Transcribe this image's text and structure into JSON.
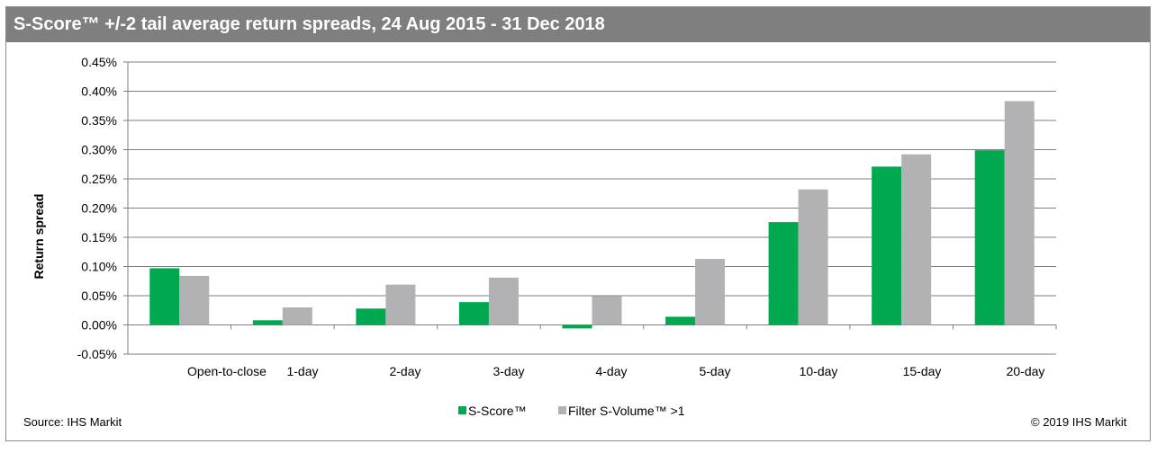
{
  "title": "S-Score™ +/-2 tail average return spreads, 24 Aug 2015 - 31 Dec 2018",
  "footer": {
    "source": "Source: IHS Markit",
    "copyright": "© 2019 IHS Markit"
  },
  "colors": {
    "series1": "#00a94f",
    "series2": "#b2b2b4",
    "title_bg": "#7f7f7f",
    "grid": "#7f7f7f"
  },
  "chart_data": {
    "type": "bar",
    "title": "S-Score™ +/-2 tail average return spreads, 24 Aug 2015 - 31 Dec 2018",
    "xlabel": "",
    "ylabel": "Return spread",
    "categories": [
      "Open-to-close",
      "1-day",
      "2-day",
      "3-day",
      "4-day",
      "5-day",
      "10-day",
      "15-day",
      "20-day"
    ],
    "series": [
      {
        "name": "S-Score™",
        "values": [
          0.097,
          0.008,
          0.028,
          0.039,
          -0.006,
          0.014,
          0.176,
          0.271,
          0.299
        ]
      },
      {
        "name": "Filter S-Volume™ >1",
        "values": [
          0.084,
          0.03,
          0.069,
          0.081,
          0.049,
          0.113,
          0.232,
          0.292,
          0.383
        ]
      }
    ],
    "ylim": [
      -0.05,
      0.45
    ],
    "yticks": [
      -0.05,
      0.0,
      0.05,
      0.1,
      0.15,
      0.2,
      0.25,
      0.3,
      0.35,
      0.4,
      0.45
    ],
    "ytick_labels": [
      "-0.05%",
      "0.00%",
      "0.05%",
      "0.10%",
      "0.15%",
      "0.20%",
      "0.25%",
      "0.30%",
      "0.35%",
      "0.40%",
      "0.45%"
    ],
    "grid": true,
    "legend": "bottom-center"
  }
}
